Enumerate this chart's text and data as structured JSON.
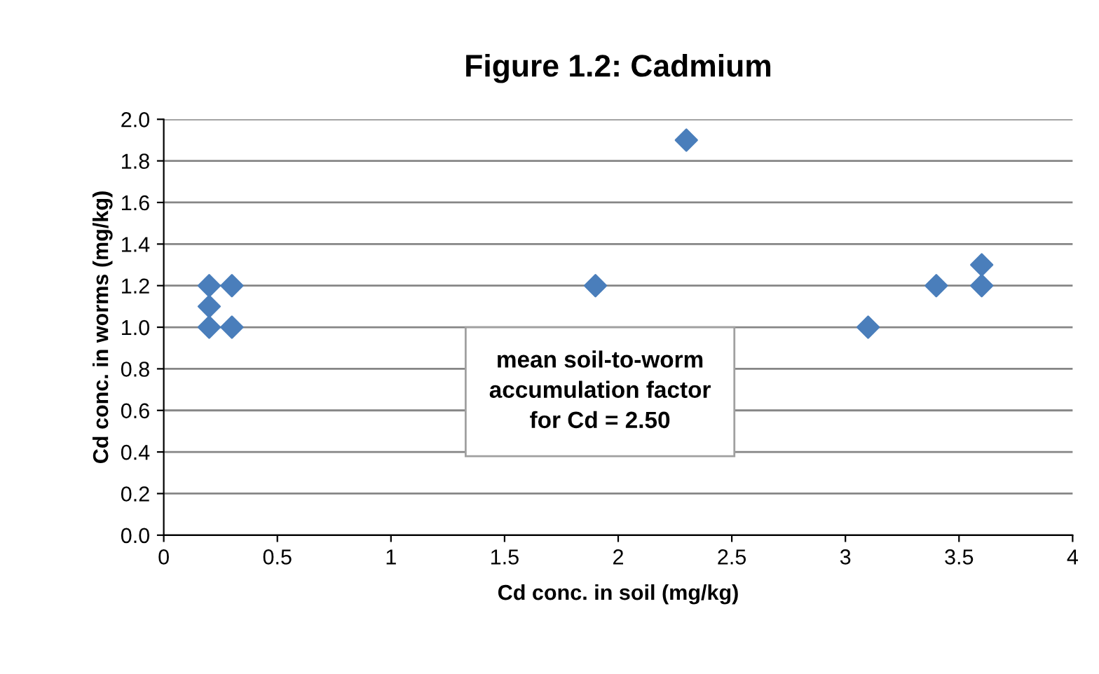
{
  "chart_data": {
    "type": "scatter",
    "title": "Figure 1.2: Cadmium",
    "xlabel": "Cd conc. in soil (mg/kg)",
    "ylabel": "Cd conc. in worms (mg/kg)",
    "x": [
      0.2,
      0.3,
      0.2,
      0.2,
      0.3,
      1.9,
      2.3,
      3.1,
      3.4,
      3.6,
      3.6
    ],
    "series": [
      {
        "color": "#4a7ebb",
        "values": [
          1.2,
          1.2,
          1.1,
          1.0,
          1.0,
          1.2,
          1.9,
          1.0,
          1.2,
          1.3,
          1.2
        ]
      }
    ],
    "xlim": [
      0,
      4
    ],
    "xticks": [
      0,
      0.5,
      1,
      1.5,
      2,
      2.5,
      3,
      3.5,
      4
    ],
    "ylim": [
      0,
      2.0
    ],
    "yticks": [
      {
        "value": 0,
        "label": "0.0"
      },
      {
        "value": 0.2,
        "label": "0.2"
      },
      {
        "value": 0.4,
        "label": "0.4"
      },
      {
        "value": 0.6,
        "label": "0.6"
      },
      {
        "value": 0.8,
        "label": "0.8"
      },
      {
        "value": 1.0,
        "label": "1.0"
      },
      {
        "value": 1.2,
        "label": "1.2"
      },
      {
        "value": 1.4,
        "label": "1.4"
      },
      {
        "value": 1.6,
        "label": "1.6"
      },
      {
        "value": 1.8,
        "label": "1.8"
      },
      {
        "value": 2.0,
        "label": "2.0"
      }
    ],
    "grid": "y",
    "marker": "diamond",
    "annotations": [
      "mean soil-to-worm\naccumulation factor\nfor Cd = 2.50"
    ]
  }
}
